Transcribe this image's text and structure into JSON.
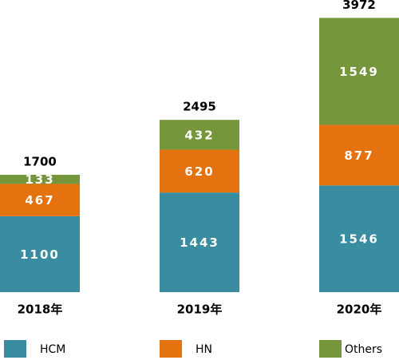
{
  "chart_data": {
    "type": "stacked-bar",
    "categories": [
      "2018年",
      "2019年",
      "2020年"
    ],
    "series": [
      {
        "name": "HCM",
        "color": "#3a8ca0",
        "values": [
          1100,
          1443,
          1546
        ]
      },
      {
        "name": "HN",
        "color": "#e3720f",
        "values": [
          467,
          620,
          877
        ]
      },
      {
        "name": "Others",
        "color": "#76963c",
        "values": [
          133,
          432,
          1549
        ]
      }
    ],
    "totals": [
      1700,
      2495,
      3972
    ],
    "ylim": [
      0,
      4000
    ]
  }
}
